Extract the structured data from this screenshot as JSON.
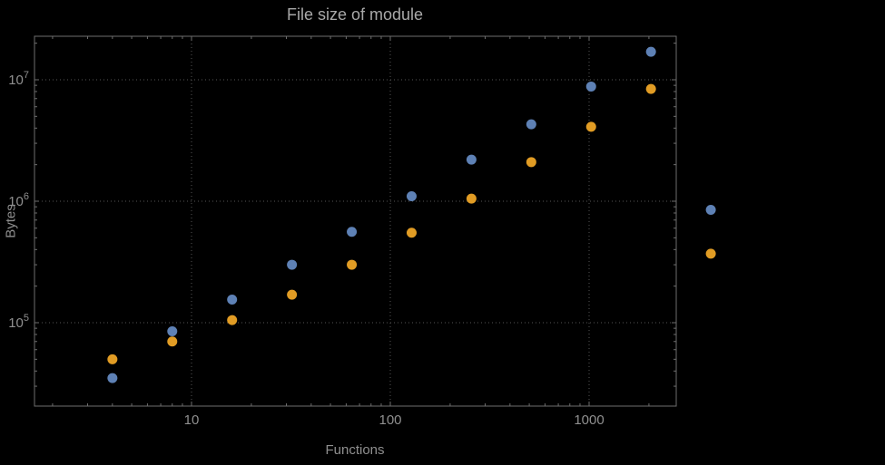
{
  "chart_data": {
    "type": "scatter",
    "title": "File size of module",
    "xlabel": "Functions",
    "ylabel": "Bytes",
    "x_scale": "log",
    "y_scale": "log",
    "grid": "dotted",
    "legend": "none",
    "x_ticks": [
      10,
      100,
      1000
    ],
    "x_tick_labels": [
      "10",
      "100",
      "1000"
    ],
    "y_ticks": [
      100000,
      1000000,
      10000000
    ],
    "y_tick_labels": [
      "10^5",
      "10^6",
      "10^7"
    ],
    "x_range_approx": [
      1.6,
      2700
    ],
    "y_range_approx": [
      20000,
      23000000
    ],
    "x": [
      4,
      8,
      16,
      32,
      64,
      128,
      256,
      512,
      1024,
      2048,
      4096
    ],
    "series": [
      {
        "name": "series-blue",
        "color": "#5E81B5",
        "values": [
          35000,
          85000,
          155000,
          300000,
          560000,
          1100000,
          2200000,
          4300000,
          8800000,
          17000000,
          850000
        ]
      },
      {
        "name": "series-orange",
        "color": "#E19C24",
        "values": [
          50000,
          70000,
          105000,
          170000,
          300000,
          550000,
          1050000,
          2100000,
          4100000,
          8400000,
          370000
        ]
      }
    ],
    "colors": {
      "background": "#000000",
      "frame": "#6e6e6e",
      "grid": "#565656",
      "tick_text": "#8f8f8f",
      "title_text": "#a8a8a8"
    }
  }
}
